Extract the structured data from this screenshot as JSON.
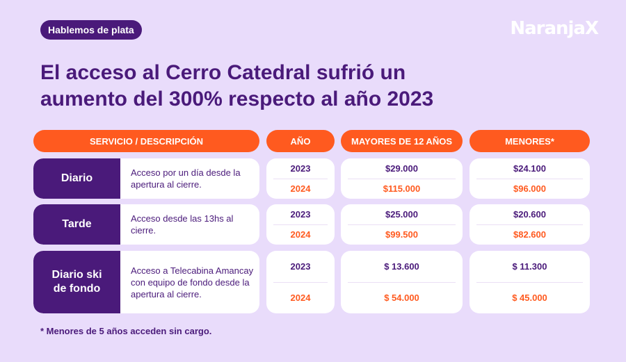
{
  "tag": "Hablemos de plata",
  "logo": "NaranjaX",
  "title": "El acceso al Cerro Catedral sufrió un aumento del 300% respecto al año 2023",
  "colors": {
    "background": "#e9dcfb",
    "purple": "#4a1a7a",
    "orange": "#ff5a1f"
  },
  "headers": {
    "service": "SERVICIO / DESCRIPCIÓN",
    "year": "AÑO",
    "adults": "MAYORES DE 12 AÑOS",
    "minors": "MENORES*"
  },
  "rows": [
    {
      "name": "Diario",
      "description": "Acceso por un día desde la apertura al cierre.",
      "years": [
        "2023",
        "2024"
      ],
      "adults": [
        "$29.000",
        "$115.000"
      ],
      "minors": [
        "$24.100",
        "$96.000"
      ]
    },
    {
      "name": "Tarde",
      "description": "Acceso desde las 13hs al cierre.",
      "years": [
        "2023",
        "2024"
      ],
      "adults": [
        "$25.000",
        "$99.500"
      ],
      "minors": [
        "$20.600",
        "$82.600"
      ]
    },
    {
      "name": "Diario ski de fondo",
      "description": "Acceso a Telecabina Amancay con equipo de fondo desde la apertura al cierre.",
      "years": [
        "2023",
        "2024"
      ],
      "adults": [
        "$ 13.600",
        "$ 54.000"
      ],
      "minors": [
        "$ 11.300",
        "$ 45.000"
      ]
    }
  ],
  "footnote": "* Menores de 5 años acceden sin cargo."
}
